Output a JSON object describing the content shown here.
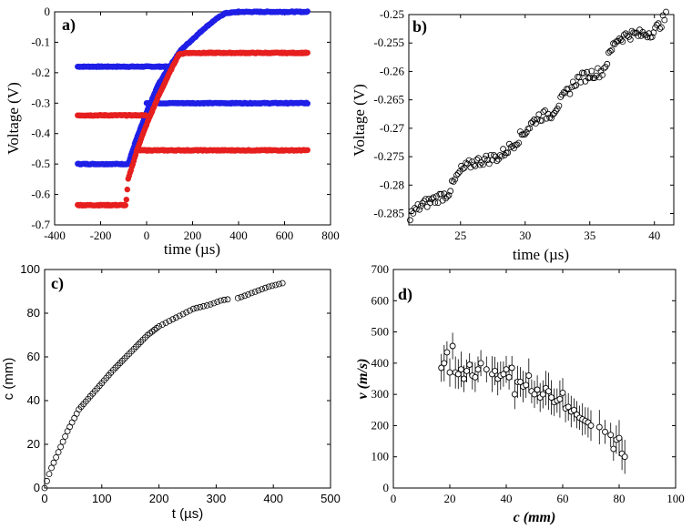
{
  "chart_data": [
    {
      "panel": "a)",
      "type": "scatter",
      "xlabel": "time (µs)",
      "ylabel": "Voltage (V)",
      "xlim": [
        -400,
        800
      ],
      "ylim": [
        -0.7,
        0
      ],
      "xticks": [
        "-400",
        "-200",
        "0",
        "200",
        "400",
        "600",
        "800"
      ],
      "yticks": [
        "0",
        "-0.1",
        "-0.2",
        "-0.3",
        "-0.4",
        "-0.5",
        "-0.6",
        "-0.7"
      ],
      "series": [
        {
          "name": "blue trace",
          "color": "#1f1fe6",
          "segments": [
            [
              [
                -300,
                -0.18
              ],
              [
                100,
                -0.18
              ]
            ],
            [
              [
                -300,
                -0.5
              ],
              [
                -80,
                -0.5
              ],
              [
                -50,
                -0.43
              ],
              [
                0,
                -0.33
              ],
              [
                50,
                -0.24
              ],
              [
                100,
                -0.18
              ],
              [
                150,
                -0.125
              ],
              [
                200,
                -0.09
              ],
              [
                250,
                -0.055
              ],
              [
                300,
                -0.025
              ],
              [
                340,
                -0.005
              ],
              [
                400,
                0.0
              ],
              [
                700,
                0.0
              ]
            ],
            [
              [
                0,
                -0.3
              ],
              [
                700,
                -0.3
              ]
            ]
          ]
        },
        {
          "name": "red trace",
          "color": "#e61f1f",
          "segments": [
            [
              [
                -300,
                -0.34
              ],
              [
                0,
                -0.34
              ]
            ],
            [
              [
                -300,
                -0.635
              ],
              [
                -90,
                -0.635
              ],
              [
                -80,
                -0.55
              ],
              [
                -40,
                -0.45
              ],
              [
                0,
                -0.37
              ],
              [
                50,
                -0.28
              ],
              [
                100,
                -0.2
              ],
              [
                140,
                -0.14
              ],
              [
                170,
                -0.135
              ],
              [
                700,
                -0.135
              ]
            ],
            [
              [
                -40,
                -0.455
              ],
              [
                700,
                -0.455
              ]
            ]
          ]
        }
      ]
    },
    {
      "panel": "b)",
      "type": "scatter",
      "xlabel": "time (µs)",
      "ylabel": "Voltage (V)",
      "xlim": [
        21,
        41.5
      ],
      "ylim": [
        -0.287,
        -0.25
      ],
      "xticks": [
        "25",
        "30",
        "35",
        "40"
      ],
      "yticks": [
        "-0.25",
        "-0.255",
        "-0.26",
        "-0.265",
        "-0.27",
        "-0.275",
        "-0.28",
        "-0.285"
      ],
      "trend": [
        [
          21,
          -0.2855
        ],
        [
          22,
          -0.2835
        ],
        [
          23,
          -0.2825
        ],
        [
          24,
          -0.2815
        ],
        [
          25,
          -0.2775
        ],
        [
          26,
          -0.276
        ],
        [
          27,
          -0.2755
        ],
        [
          28,
          -0.275
        ],
        [
          29,
          -0.273
        ],
        [
          30,
          -0.2705
        ],
        [
          31,
          -0.268
        ],
        [
          32,
          -0.2675
        ],
        [
          33,
          -0.2645
        ],
        [
          34,
          -0.2615
        ],
        [
          35,
          -0.2605
        ],
        [
          36,
          -0.26
        ],
        [
          37,
          -0.2545
        ],
        [
          38,
          -0.2535
        ],
        [
          39,
          -0.2535
        ],
        [
          40,
          -0.253
        ],
        [
          41,
          -0.25
        ]
      ]
    },
    {
      "panel": "c)",
      "type": "scatter",
      "xlabel": "t (µs)",
      "ylabel": "c (mm)",
      "xlim": [
        0,
        500
      ],
      "ylim": [
        0,
        100
      ],
      "xticks": [
        "0",
        "100",
        "200",
        "300",
        "400",
        "500"
      ],
      "yticks": [
        "0",
        "20",
        "40",
        "60",
        "80",
        "100"
      ],
      "curve": [
        [
          0,
          0
        ],
        [
          10,
          8
        ],
        [
          20,
          14
        ],
        [
          40,
          26
        ],
        [
          60,
          36
        ],
        [
          80,
          42
        ],
        [
          100,
          48
        ],
        [
          120,
          54
        ],
        [
          150,
          62
        ],
        [
          180,
          70
        ],
        [
          200,
          74
        ],
        [
          230,
          78
        ],
        [
          260,
          82
        ],
        [
          290,
          84
        ],
        [
          310,
          86
        ],
        [
          340,
          87
        ],
        [
          360,
          89
        ],
        [
          390,
          92
        ],
        [
          420,
          94
        ]
      ],
      "gap": [
        320,
        335
      ]
    },
    {
      "panel": "d)",
      "type": "scatter",
      "xlabel": "c (mm)",
      "ylabel": "v (m/s)",
      "xlim": [
        0,
        100
      ],
      "ylim": [
        0,
        700
      ],
      "xticks": [
        "0",
        "20",
        "40",
        "60",
        "80",
        "100"
      ],
      "yticks": [
        "0",
        "100",
        "200",
        "300",
        "400",
        "500",
        "600",
        "700"
      ],
      "points": [
        [
          17,
          385
        ],
        [
          18,
          400
        ],
        [
          19,
          435
        ],
        [
          20,
          370
        ],
        [
          21,
          455
        ],
        [
          22,
          370
        ],
        [
          23,
          365
        ],
        [
          24,
          380
        ],
        [
          25,
          350
        ],
        [
          26,
          375
        ],
        [
          27,
          395
        ],
        [
          28,
          360
        ],
        [
          29,
          355
        ],
        [
          30,
          380
        ],
        [
          31,
          400
        ],
        [
          33,
          380
        ],
        [
          35,
          365
        ],
        [
          36,
          375
        ],
        [
          37,
          350
        ],
        [
          38,
          360
        ],
        [
          39,
          365
        ],
        [
          40,
          380
        ],
        [
          41,
          355
        ],
        [
          42,
          385
        ],
        [
          43,
          300
        ],
        [
          44,
          340
        ],
        [
          45,
          340
        ],
        [
          46,
          325
        ],
        [
          47,
          330
        ],
        [
          48,
          360
        ],
        [
          49,
          310
        ],
        [
          50,
          300
        ],
        [
          51,
          315
        ],
        [
          52,
          290
        ],
        [
          53,
          300
        ],
        [
          54,
          320
        ],
        [
          55,
          310
        ],
        [
          56,
          290
        ],
        [
          57,
          275
        ],
        [
          58,
          280
        ],
        [
          59,
          285
        ],
        [
          60,
          305
        ],
        [
          61,
          255
        ],
        [
          62,
          260
        ],
        [
          63,
          245
        ],
        [
          64,
          250
        ],
        [
          65,
          235
        ],
        [
          66,
          225
        ],
        [
          67,
          220
        ],
        [
          68,
          215
        ],
        [
          69,
          210
        ],
        [
          70,
          200
        ],
        [
          73,
          195
        ],
        [
          75,
          180
        ],
        [
          77,
          170
        ],
        [
          78,
          125
        ],
        [
          79,
          155
        ],
        [
          80,
          160
        ],
        [
          81,
          110
        ],
        [
          82,
          100
        ]
      ]
    }
  ]
}
